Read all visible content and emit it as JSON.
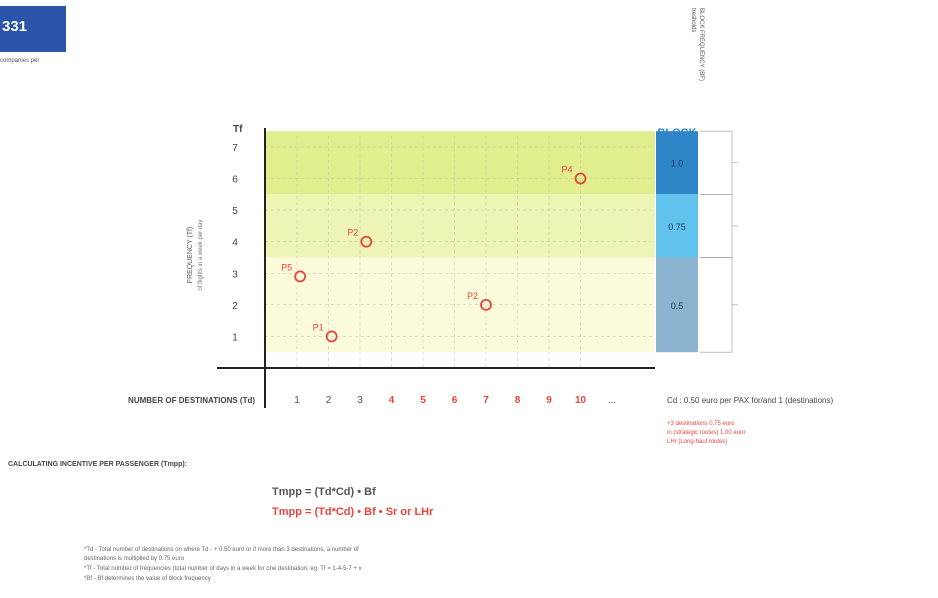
{
  "header": {
    "badge": "331",
    "badge_subtitle": "companies per"
  },
  "block_freq_label": [
    "BLOCK FREQUENCY (BF)",
    "tresholds"
  ],
  "chart_data": {
    "type": "scatter",
    "title": "",
    "xlabel": "NUMBER OF DESTINATIONS  (Td)",
    "ylabel": "FREQUENCY (Tf)",
    "ylabel_sub": "of flights in a week per day",
    "y_axis_title": "Tf",
    "x_ticks": [
      "1",
      "2",
      "3",
      "4",
      "5",
      "6",
      "7",
      "8",
      "9",
      "10",
      "..."
    ],
    "x_tick_colors": [
      "#555555",
      "#555555",
      "#555555",
      "#e8463c",
      "#e8463c",
      "#e8463c",
      "#e8463c",
      "#e8463c",
      "#e8463c",
      "#e8463c",
      "#555555"
    ],
    "y_ticks": [
      1,
      2,
      3,
      4,
      5,
      6,
      7
    ],
    "xlim": [
      1,
      11
    ],
    "ylim": [
      0,
      7.6
    ],
    "zones": [
      {
        "from": 5.5,
        "to": 7.5,
        "color": "#e2ee8e"
      },
      {
        "from": 3.5,
        "to": 5.5,
        "color": "#eef4b4"
      },
      {
        "from": 0.5,
        "to": 3.5,
        "color": "#fbfbdc"
      }
    ],
    "points": [
      {
        "label": "P1",
        "x": 2.1,
        "y": 1.0
      },
      {
        "label": "P2",
        "x": 7.0,
        "y": 2.0
      },
      {
        "label": "P5",
        "x": 1.1,
        "y": 2.9
      },
      {
        "label": "P2",
        "x": 3.2,
        "y": 4.0
      },
      {
        "label": "P4",
        "x": 10.0,
        "y": 6.0
      }
    ],
    "block": {
      "title": "BLOCK",
      "levels": [
        {
          "label": "1.0",
          "from": 5.5,
          "to": 7.5,
          "color": "#2e86c8"
        },
        {
          "label": "0.75",
          "from": 3.5,
          "to": 5.5,
          "color": "#62c2ee"
        },
        {
          "label": "0.5",
          "from": 0.5,
          "to": 3.5,
          "color": "#8ab4d0"
        }
      ]
    },
    "cd_label": "Cd : 0.50 euro per PAX for/and 1 (destinations)",
    "grid": true
  },
  "notes_red": [
    "+3 destinations 0.75 euro",
    "in (strategic routes) 1.00 euro",
    "LHr (Long-haul routes)"
  ],
  "calculating_label": "CALCULATING INCENTIVE PER PASSENGER  (Tmpp):",
  "formula1": "Tmpp = (Td*Cd) • Bf",
  "formula2": "Tmpp = (Td*Cd) • Bf • Sr or LHr",
  "footnotes": [
    "*Td - Total number of destinations on where Td - + 0.50 euro or if more than 3 destinations, a number of",
    "destinations is multiplied by 0.75 euro",
    "*Tf - Total number of frequencies (total number of days in a week for one destination, eg. Tf = 1-4-5-7 + x",
    "*Bf - Bf determines the value of block frequency"
  ]
}
